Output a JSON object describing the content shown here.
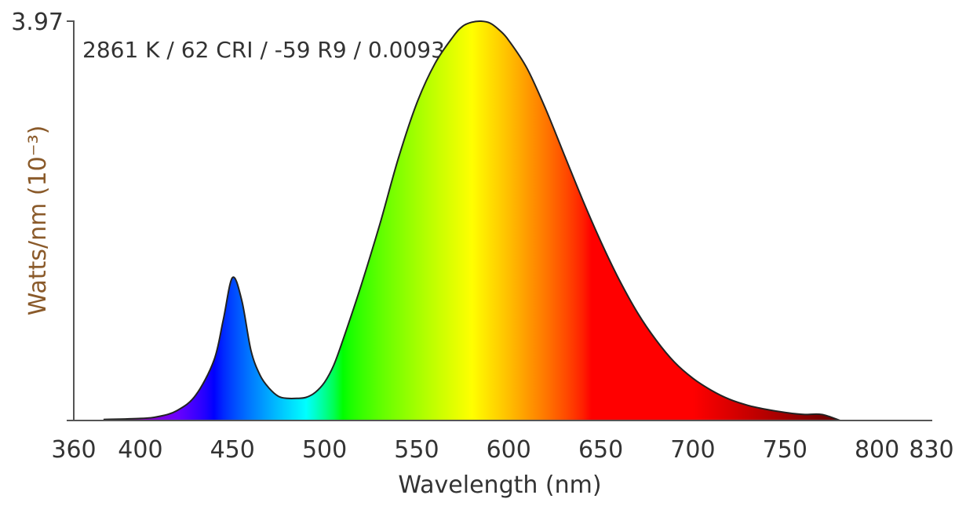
{
  "chart_data": {
    "type": "area",
    "title": "",
    "annotation": "2861 K / 62 CRI / -59 R9 / 0.0093 Duv",
    "xlabel": "Wavelength (nm)",
    "ylabel": "Watts/nm (10⁻³)",
    "xlim": [
      360,
      830
    ],
    "ylim": [
      0,
      3.97
    ],
    "x_ticks": [
      "360",
      "400",
      "450",
      "500",
      "550",
      "600",
      "650",
      "700",
      "750",
      "800",
      "830"
    ],
    "y_ticks": [
      "3.97"
    ],
    "grid": false,
    "legend": "none",
    "series": [
      {
        "x": [
          380,
          400,
          410,
          420,
          430,
          440,
          445,
          450,
          455,
          460,
          465,
          470,
          475,
          480,
          485,
          490,
          495,
          500,
          505,
          510,
          520,
          530,
          540,
          550,
          560,
          570,
          575,
          580,
          585,
          590,
          595,
          600,
          610,
          620,
          630,
          640,
          650,
          660,
          670,
          680,
          690,
          700,
          710,
          720,
          730,
          740,
          750,
          760,
          770,
          780
        ],
        "y": [
          0.01,
          0.02,
          0.04,
          0.1,
          0.25,
          0.6,
          1.0,
          1.42,
          1.2,
          0.7,
          0.45,
          0.32,
          0.24,
          0.22,
          0.22,
          0.23,
          0.28,
          0.38,
          0.55,
          0.8,
          1.35,
          1.95,
          2.6,
          3.15,
          3.55,
          3.82,
          3.92,
          3.96,
          3.97,
          3.95,
          3.88,
          3.78,
          3.5,
          3.1,
          2.65,
          2.2,
          1.78,
          1.4,
          1.07,
          0.8,
          0.58,
          0.42,
          0.3,
          0.21,
          0.15,
          0.11,
          0.08,
          0.06,
          0.06,
          0.0
        ]
      }
    ]
  }
}
